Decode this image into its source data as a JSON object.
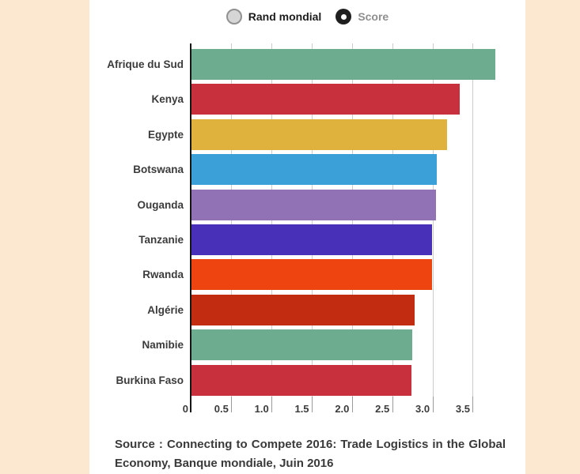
{
  "page": {
    "background_color": "#fce8d1",
    "panel_color": "#ffffff"
  },
  "legend": {
    "items": [
      {
        "label": "Rand mondial",
        "selected": false,
        "label_color": "#1d1d1d"
      },
      {
        "label": "Score",
        "selected": true,
        "label_color": "#8f8f8f"
      }
    ]
  },
  "chart_data": {
    "type": "bar",
    "orientation": "horizontal",
    "title": "",
    "xlabel": "",
    "ylabel": "",
    "categories": [
      "Afrique du Sud",
      "Kenya",
      "Egypte",
      "Botswana",
      "Ouganda",
      "Tanzanie",
      "Rwanda",
      "Algérie",
      "Namibie",
      "Burkina Faso"
    ],
    "series": [
      {
        "name": "Score",
        "values": [
          3.78,
          3.33,
          3.18,
          3.05,
          3.04,
          2.99,
          2.99,
          2.77,
          2.74,
          2.73
        ]
      }
    ],
    "bar_colors": [
      "#6dac8e",
      "#c8303d",
      "#dfb23e",
      "#3b9fd8",
      "#9172b5",
      "#4930b8",
      "#ee4410",
      "#c22c10",
      "#6dac8e",
      "#c8303d"
    ],
    "xlim": [
      0,
      3.91
    ],
    "xticks": [
      0,
      0.5,
      1,
      1.5,
      2,
      2.5,
      3,
      3.5
    ],
    "xtick_labels": [
      "0",
      "0.5",
      "1.0",
      "1.5",
      "2.0",
      "2.5",
      "3.0",
      "3.5"
    ],
    "grid": true,
    "grid_color": "#cccccc",
    "axis_color": "#161616",
    "legend_position": "top",
    "selected_toggle": "Score"
  },
  "source": {
    "text": "Source : Connecting to Compete 2016: Trade Logistics in the Global Economy, Banque mondiale, Juin 2016"
  }
}
